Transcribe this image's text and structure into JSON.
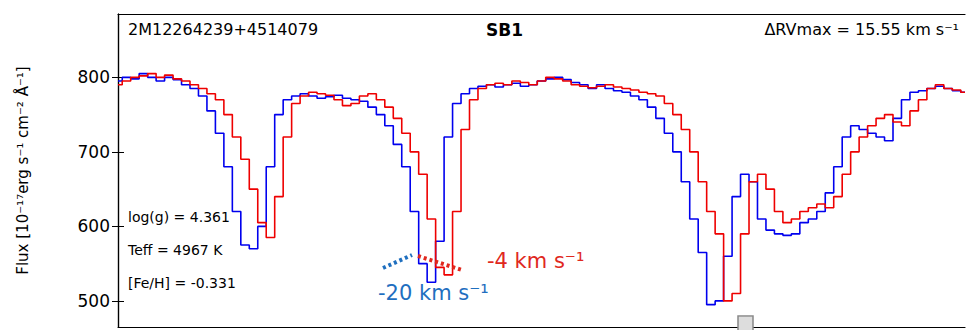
{
  "chart_data": {
    "type": "line",
    "title": "SB1",
    "star_id": "2M12264239+4514079",
    "delta_rv": "ΔRVmax = 15.55 km s⁻¹",
    "parameters": [
      "log(g) = 4.361",
      "Teff = 4967 K",
      "[Fe/H] = -0.331"
    ],
    "annotations": [
      {
        "text": "-20 km s⁻¹",
        "color": "#1f6fbf"
      },
      {
        "text": "-4 km s⁻¹",
        "color": "#e0281e"
      }
    ],
    "y_label": "Flux [10⁻¹⁷erg s⁻¹ cm⁻² Å⁻¹]",
    "line_style": "step",
    "tick_labels": "y",
    "xlim": [
      0,
      100
    ],
    "ylim": [
      465,
      885
    ],
    "yticks": [
      500,
      600,
      700,
      800
    ],
    "x": [
      0,
      1,
      2,
      3,
      4,
      5,
      6,
      7,
      8,
      9,
      10,
      11,
      12,
      13,
      14,
      15,
      16,
      17,
      18,
      19,
      20,
      21,
      22,
      23,
      24,
      25,
      26,
      27,
      28,
      29,
      30,
      31,
      32,
      33,
      34,
      35,
      36,
      37,
      38,
      39,
      40,
      41,
      42,
      43,
      44,
      45,
      46,
      47,
      48,
      49,
      50,
      51,
      52,
      53,
      54,
      55,
      56,
      57,
      58,
      59,
      60,
      61,
      62,
      63,
      64,
      65,
      66,
      67,
      68,
      69,
      70,
      71,
      72,
      73,
      74,
      75,
      76,
      77,
      78,
      79,
      80,
      81,
      82,
      83,
      84,
      85,
      86,
      87,
      88,
      89,
      90,
      91,
      92,
      93,
      94,
      95,
      96,
      97,
      98,
      99,
      100
    ],
    "series": [
      {
        "color": "#0000ee",
        "values": [
          795,
          800,
          798,
          805,
          800,
          795,
          800,
          797,
          790,
          785,
          775,
          755,
          725,
          680,
          620,
          575,
          570,
          600,
          680,
          750,
          770,
          775,
          778,
          775,
          772,
          774,
          776,
          772,
          770,
          768,
          760,
          750,
          735,
          710,
          680,
          620,
          550,
          525,
          580,
          720,
          765,
          778,
          785,
          788,
          790,
          787,
          790,
          792,
          788,
          790,
          795,
          798,
          800,
          797,
          793,
          790,
          785,
          790,
          785,
          782,
          780,
          775,
          770,
          760,
          745,
          725,
          700,
          660,
          610,
          565,
          495,
          500,
          560,
          640,
          670,
          660,
          610,
          595,
          590,
          588,
          590,
          605,
          610,
          620,
          645,
          680,
          720,
          735,
          730,
          725,
          720,
          715,
          745,
          770,
          780,
          782,
          785,
          788,
          785,
          782,
          780
        ]
      },
      {
        "color": "#ee0000",
        "values": [
          790,
          795,
          800,
          802,
          805,
          800,
          803,
          798,
          795,
          790,
          785,
          778,
          770,
          750,
          720,
          690,
          650,
          605,
          585,
          640,
          720,
          765,
          775,
          780,
          778,
          776,
          770,
          762,
          765,
          775,
          778,
          770,
          760,
          745,
          725,
          700,
          670,
          610,
          545,
          535,
          620,
          730,
          770,
          785,
          790,
          792,
          790,
          795,
          793,
          790,
          795,
          800,
          798,
          795,
          790,
          788,
          786,
          788,
          790,
          787,
          785,
          783,
          780,
          778,
          775,
          765,
          750,
          730,
          700,
          660,
          620,
          590,
          500,
          510,
          590,
          660,
          670,
          650,
          620,
          605,
          610,
          620,
          625,
          630,
          625,
          640,
          670,
          700,
          720,
          735,
          745,
          750,
          740,
          735,
          755,
          770,
          785,
          790,
          785,
          783,
          780
        ]
      }
    ]
  }
}
